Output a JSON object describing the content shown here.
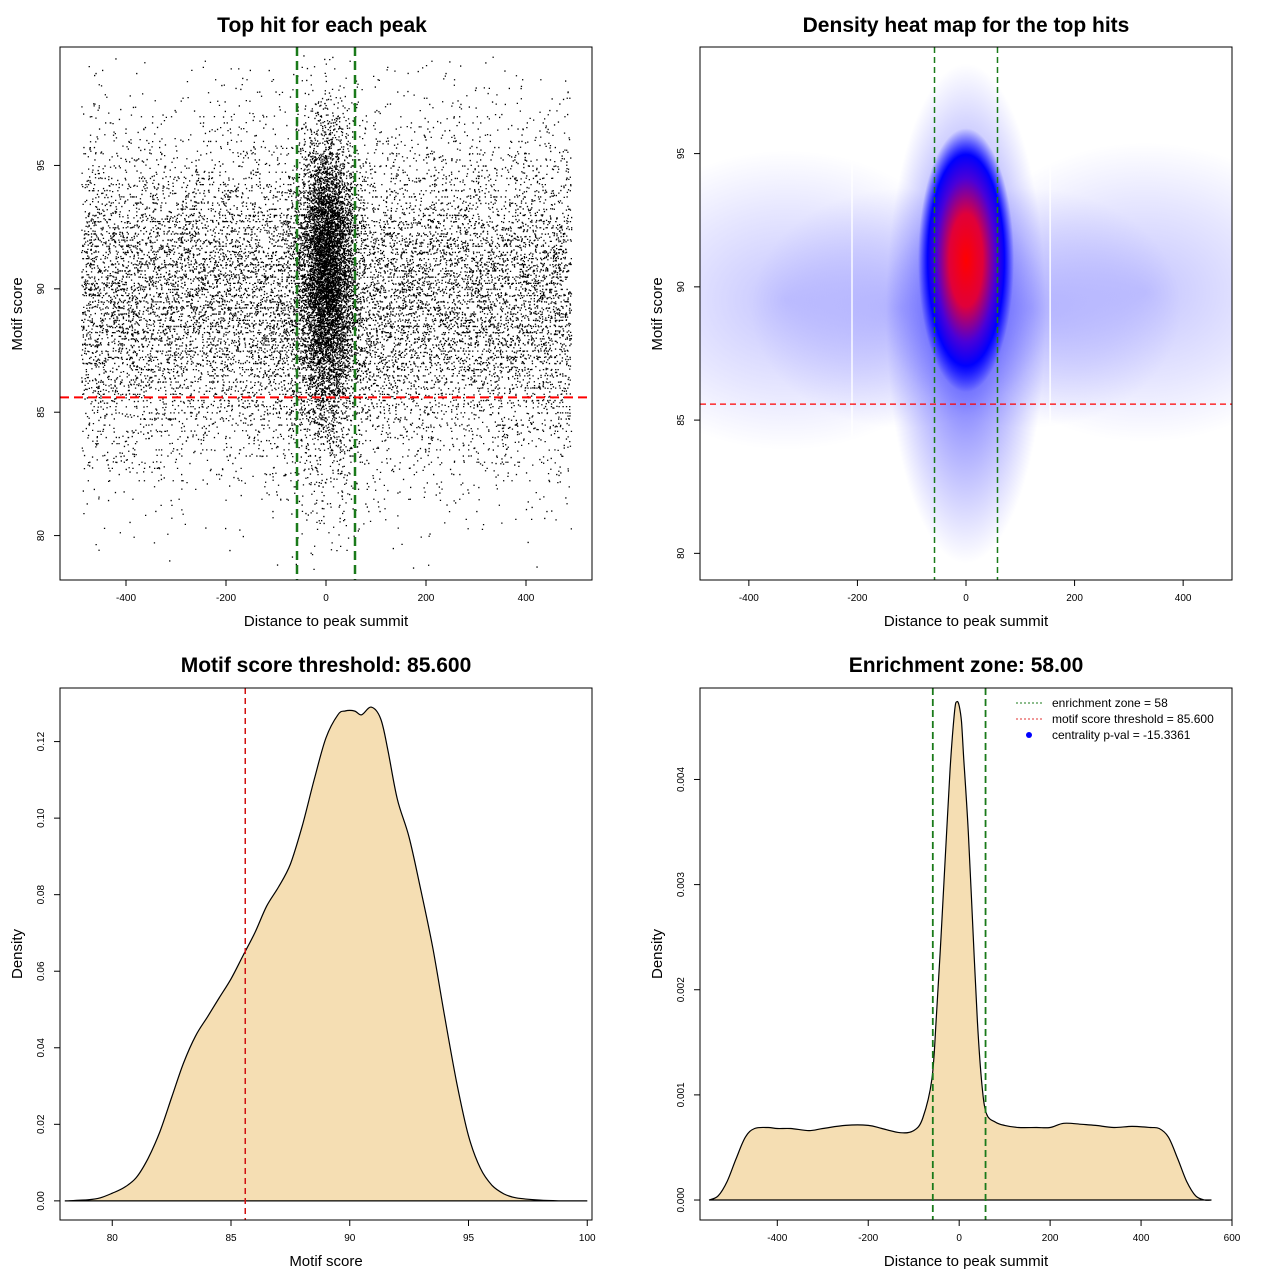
{
  "chart_data": [
    {
      "type": "scatter",
      "title": "Top hit for each peak",
      "xlabel": "Distance to peak summit",
      "ylabel": "Motif score",
      "xlim": [
        -532,
        532
      ],
      "ylim": [
        78.2,
        99.8
      ],
      "xticks": [
        -400,
        -200,
        0,
        200,
        400
      ],
      "yticks": [
        80,
        85,
        90,
        95
      ],
      "enrichment_zone": 58,
      "threshold": 85.6,
      "point_color": "#000000",
      "zone_color": "#1a7a1a",
      "threshold_color": "#ff0000"
    },
    {
      "type": "heatmap",
      "title": "Density heat map for the top hits",
      "xlabel": "Distance to peak summit",
      "ylabel": "Motif score",
      "xlim": [
        -490,
        490
      ],
      "ylim": [
        79,
        99
      ],
      "xticks": [
        -400,
        -200,
        0,
        200,
        400
      ],
      "yticks": [
        80,
        85,
        90,
        95
      ],
      "enrichment_zone": 58,
      "threshold": 85.6,
      "colors": [
        "#ffffff",
        "#0000ff",
        "#ff0000"
      ],
      "zone_color": "#1a7a1a",
      "threshold_color": "#ff0000"
    },
    {
      "type": "area",
      "title": "Motif score threshold: 85.600",
      "xlabel": "Motif score",
      "ylabel": "Density",
      "xlim": [
        77.8,
        100.2
      ],
      "ylim": [
        -0.005,
        0.134
      ],
      "xticks": [
        80,
        85,
        90,
        95,
        100
      ],
      "yticks": [
        0.0,
        0.02,
        0.04,
        0.06,
        0.08,
        0.1,
        0.12
      ],
      "ytick_labels": [
        "0.00",
        "0.02",
        "0.04",
        "0.06",
        "0.08",
        "0.10",
        "0.12"
      ],
      "threshold": 85.6,
      "x": [
        78,
        79,
        79.5,
        80,
        80.5,
        81,
        81.5,
        82,
        82.5,
        83,
        83.5,
        84,
        84.5,
        85,
        85.5,
        86,
        86.5,
        87,
        87.5,
        88,
        88.5,
        89,
        89.5,
        89.8,
        90.2,
        90.5,
        90.9,
        91.3,
        91.6,
        92,
        92.5,
        93,
        93.5,
        94,
        94.5,
        95,
        95.5,
        96,
        96.5,
        97,
        98,
        99,
        100
      ],
      "y": [
        0.0,
        0.0003,
        0.0008,
        0.002,
        0.0035,
        0.006,
        0.011,
        0.018,
        0.027,
        0.036,
        0.043,
        0.048,
        0.053,
        0.058,
        0.064,
        0.07,
        0.077,
        0.082,
        0.088,
        0.098,
        0.11,
        0.121,
        0.127,
        0.128,
        0.128,
        0.127,
        0.129,
        0.126,
        0.118,
        0.105,
        0.095,
        0.081,
        0.066,
        0.048,
        0.031,
        0.017,
        0.0085,
        0.004,
        0.0018,
        0.0008,
        0.0002,
        0.0,
        0.0
      ],
      "fill_color": "#f5deb3",
      "threshold_color": "#d01010"
    },
    {
      "type": "area",
      "title": "Enrichment zone: 58.00",
      "xlabel": "Distance to peak summit",
      "ylabel": "Density",
      "xlim": [
        -570,
        600
      ],
      "ylim": [
        -0.00019,
        0.00487
      ],
      "xticks": [
        -400,
        -200,
        0,
        200,
        400,
        600
      ],
      "yticks": [
        0.0,
        0.001,
        0.002,
        0.003,
        0.004
      ],
      "ytick_labels": [
        "0.000",
        "0.001",
        "0.002",
        "0.003",
        "0.004"
      ],
      "enrichment_zone": 58,
      "x": [
        -550,
        -530,
        -510,
        -490,
        -470,
        -450,
        -420,
        -400,
        -370,
        -330,
        -300,
        -250,
        -200,
        -170,
        -130,
        -100,
        -80,
        -60,
        -50,
        -40,
        -30,
        -20,
        -10,
        -5,
        0,
        5,
        10,
        20,
        30,
        40,
        50,
        60,
        80,
        100,
        130,
        170,
        200,
        230,
        270,
        300,
        340,
        380,
        420,
        440,
        460,
        480,
        500,
        520,
        540,
        555
      ],
      "y": [
        0.0,
        4e-05,
        0.00018,
        0.0004,
        0.0006,
        0.00068,
        0.00069,
        0.00068,
        0.00068,
        0.00066,
        0.00068,
        0.00071,
        0.00071,
        0.00068,
        0.00064,
        0.00066,
        0.00078,
        0.00115,
        0.00175,
        0.0025,
        0.0033,
        0.0041,
        0.00465,
        0.00474,
        0.0047,
        0.00455,
        0.0042,
        0.0035,
        0.0026,
        0.0017,
        0.0011,
        0.00082,
        0.00074,
        0.00071,
        0.00069,
        0.00069,
        0.00069,
        0.00073,
        0.00072,
        0.00071,
        0.00069,
        0.0007,
        0.00069,
        0.00068,
        0.0006,
        0.0004,
        0.00018,
        4e-05,
        0.0,
        0.0
      ],
      "fill_color": "#f5deb3",
      "zone_color": "#1a7a1a",
      "legend": [
        {
          "label": "enrichment zone = 58",
          "style": "dotted-line",
          "color": "#1a7a1a"
        },
        {
          "label": "motif score threshold = 85.600",
          "style": "dotted-line",
          "color": "#e03030"
        },
        {
          "label": "centrality p-val = -15.3361",
          "style": "point",
          "color": "#0000ff"
        }
      ],
      "legend_position": "top-right"
    }
  ]
}
